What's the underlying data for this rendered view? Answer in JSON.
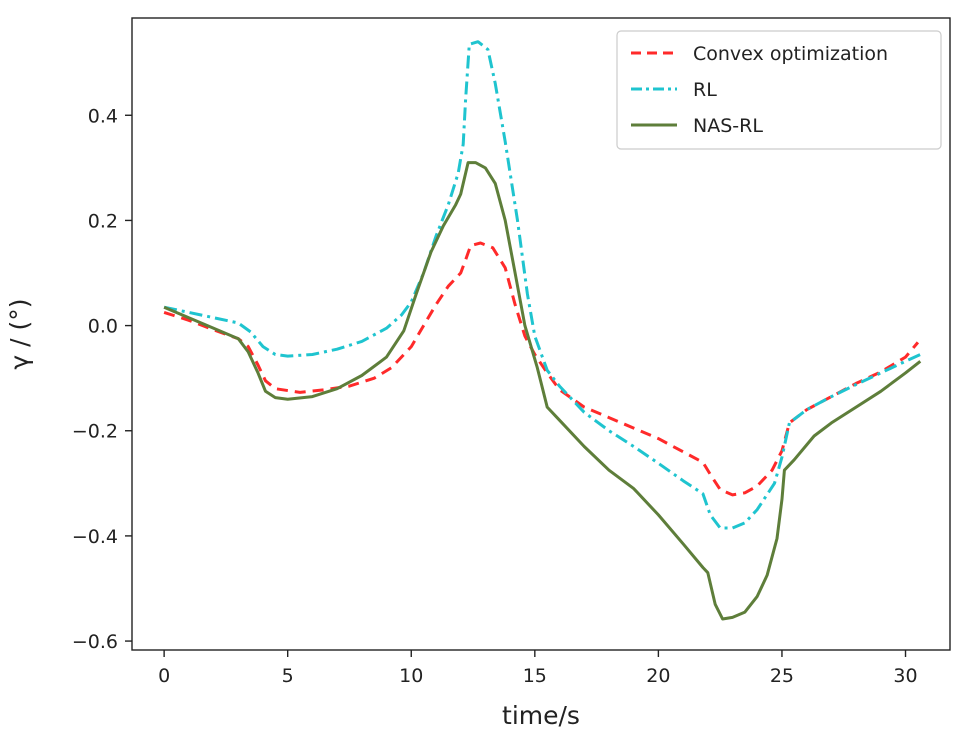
{
  "chart_data": {
    "type": "line",
    "title": "",
    "xlabel": "time/s",
    "ylabel": "γ / (°)",
    "xlim": [
      -1.3,
      31.8
    ],
    "ylim": [
      -0.617,
      0.585
    ],
    "x_ticks": [
      0,
      5,
      10,
      15,
      20,
      25,
      30
    ],
    "x_tick_labels": [
      "0",
      "5",
      "10",
      "15",
      "20",
      "25",
      "30"
    ],
    "y_ticks": [
      0.4,
      0.2,
      0.0,
      -0.2,
      -0.4,
      -0.6
    ],
    "y_tick_labels": [
      "0.4",
      "0.2",
      "0.0",
      "−0.2",
      "−0.4",
      "−0.6"
    ],
    "grid": false,
    "legend_position": "top-right",
    "series": [
      {
        "name": "Convex optimization",
        "color": "#ff2a2a",
        "style": "dashed",
        "points": [
          [
            0,
            0.025
          ],
          [
            1,
            0.01
          ],
          [
            2,
            -0.008
          ],
          [
            3,
            -0.025
          ],
          [
            3.4,
            -0.04
          ],
          [
            3.8,
            -0.075
          ],
          [
            4.1,
            -0.105
          ],
          [
            4.5,
            -0.12
          ],
          [
            5.5,
            -0.127
          ],
          [
            6.5,
            -0.122
          ],
          [
            7.5,
            -0.115
          ],
          [
            8.5,
            -0.1
          ],
          [
            9.2,
            -0.08
          ],
          [
            10,
            -0.04
          ],
          [
            10.5,
            0.0
          ],
          [
            11,
            0.04
          ],
          [
            11.5,
            0.075
          ],
          [
            12,
            0.1
          ],
          [
            12.2,
            0.125
          ],
          [
            12.4,
            0.152
          ],
          [
            12.8,
            0.157
          ],
          [
            13.3,
            0.148
          ],
          [
            13.8,
            0.11
          ],
          [
            14.2,
            0.04
          ],
          [
            14.6,
            -0.02
          ],
          [
            15,
            -0.055
          ],
          [
            15.5,
            -0.09
          ],
          [
            16,
            -0.122
          ],
          [
            17,
            -0.155
          ],
          [
            18,
            -0.175
          ],
          [
            19,
            -0.195
          ],
          [
            20,
            -0.215
          ],
          [
            21,
            -0.24
          ],
          [
            21.8,
            -0.26
          ],
          [
            22.1,
            -0.283
          ],
          [
            22.5,
            -0.312
          ],
          [
            23,
            -0.322
          ],
          [
            23.5,
            -0.318
          ],
          [
            24,
            -0.305
          ],
          [
            24.6,
            -0.275
          ],
          [
            25,
            -0.238
          ],
          [
            25.3,
            -0.185
          ],
          [
            26,
            -0.16
          ],
          [
            27,
            -0.135
          ],
          [
            28,
            -0.11
          ],
          [
            29,
            -0.088
          ],
          [
            30,
            -0.06
          ],
          [
            30.5,
            -0.032
          ]
        ]
      },
      {
        "name": "RL",
        "color": "#1fc4cf",
        "style": "dashdot",
        "points": [
          [
            0,
            0.035
          ],
          [
            1,
            0.025
          ],
          [
            2,
            0.015
          ],
          [
            3,
            0.005
          ],
          [
            3.5,
            -0.012
          ],
          [
            4,
            -0.04
          ],
          [
            4.5,
            -0.055
          ],
          [
            5,
            -0.058
          ],
          [
            6,
            -0.055
          ],
          [
            7,
            -0.045
          ],
          [
            8,
            -0.03
          ],
          [
            9,
            -0.005
          ],
          [
            9.6,
            0.02
          ],
          [
            10,
            0.045
          ],
          [
            10.5,
            0.1
          ],
          [
            11,
            0.17
          ],
          [
            11.5,
            0.23
          ],
          [
            11.9,
            0.29
          ],
          [
            12.1,
            0.345
          ],
          [
            12.2,
            0.43
          ],
          [
            12.35,
            0.535
          ],
          [
            12.7,
            0.54
          ],
          [
            13.1,
            0.525
          ],
          [
            13.4,
            0.46
          ],
          [
            13.8,
            0.35
          ],
          [
            14.3,
            0.2
          ],
          [
            14.7,
            0.06
          ],
          [
            15,
            -0.02
          ],
          [
            15.5,
            -0.085
          ],
          [
            16,
            -0.115
          ],
          [
            17,
            -0.165
          ],
          [
            18,
            -0.2
          ],
          [
            19,
            -0.23
          ],
          [
            20,
            -0.262
          ],
          [
            21,
            -0.295
          ],
          [
            21.8,
            -0.32
          ],
          [
            22.1,
            -0.36
          ],
          [
            22.5,
            -0.385
          ],
          [
            23,
            -0.385
          ],
          [
            23.5,
            -0.375
          ],
          [
            24,
            -0.35
          ],
          [
            24.7,
            -0.3
          ],
          [
            25,
            -0.25
          ],
          [
            25.3,
            -0.185
          ],
          [
            26,
            -0.16
          ],
          [
            27,
            -0.135
          ],
          [
            28,
            -0.112
          ],
          [
            29,
            -0.09
          ],
          [
            30,
            -0.068
          ],
          [
            30.6,
            -0.055
          ]
        ]
      },
      {
        "name": "NAS-RL",
        "color": "#5e7e3a",
        "style": "solid",
        "points": [
          [
            0,
            0.035
          ],
          [
            1,
            0.015
          ],
          [
            2,
            -0.005
          ],
          [
            3,
            -0.025
          ],
          [
            3.4,
            -0.05
          ],
          [
            3.8,
            -0.09
          ],
          [
            4.1,
            -0.125
          ],
          [
            4.5,
            -0.137
          ],
          [
            5,
            -0.14
          ],
          [
            6,
            -0.135
          ],
          [
            7,
            -0.12
          ],
          [
            8,
            -0.095
          ],
          [
            9,
            -0.06
          ],
          [
            9.7,
            -0.01
          ],
          [
            10.2,
            0.06
          ],
          [
            10.8,
            0.14
          ],
          [
            11.3,
            0.19
          ],
          [
            11.8,
            0.23
          ],
          [
            12,
            0.25
          ],
          [
            12.15,
            0.28
          ],
          [
            12.3,
            0.31
          ],
          [
            12.6,
            0.31
          ],
          [
            13,
            0.3
          ],
          [
            13.4,
            0.27
          ],
          [
            13.8,
            0.2
          ],
          [
            14.2,
            0.1
          ],
          [
            14.6,
            0.0
          ],
          [
            15.1,
            -0.08
          ],
          [
            15.5,
            -0.155
          ],
          [
            16,
            -0.18
          ],
          [
            17,
            -0.23
          ],
          [
            18,
            -0.275
          ],
          [
            19,
            -0.31
          ],
          [
            20,
            -0.36
          ],
          [
            21,
            -0.415
          ],
          [
            21.8,
            -0.46
          ],
          [
            22,
            -0.47
          ],
          [
            22.3,
            -0.53
          ],
          [
            22.6,
            -0.558
          ],
          [
            23,
            -0.555
          ],
          [
            23.5,
            -0.545
          ],
          [
            24,
            -0.515
          ],
          [
            24.4,
            -0.475
          ],
          [
            24.8,
            -0.405
          ],
          [
            25,
            -0.33
          ],
          [
            25.1,
            -0.275
          ],
          [
            25.5,
            -0.255
          ],
          [
            26.3,
            -0.21
          ],
          [
            27,
            -0.185
          ],
          [
            28,
            -0.155
          ],
          [
            29,
            -0.125
          ],
          [
            30,
            -0.09
          ],
          [
            30.6,
            -0.068
          ]
        ]
      }
    ]
  }
}
